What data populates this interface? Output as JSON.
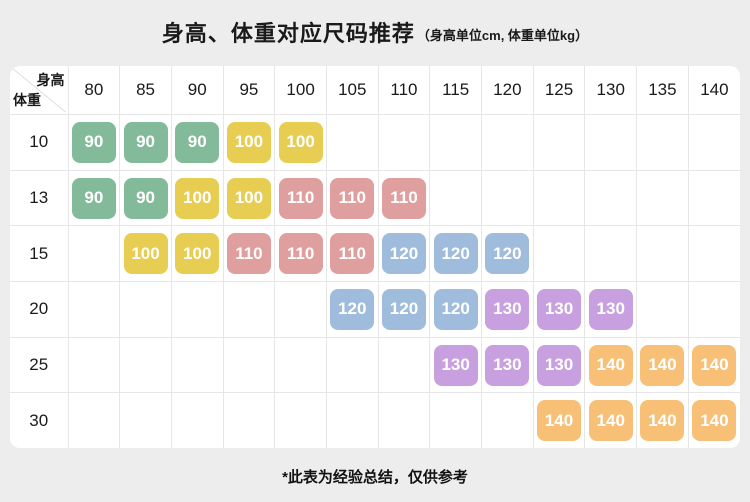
{
  "header": {
    "title": "身高、体重对应尺码推荐",
    "subtitle": "（身高单位cm, 体重单位kg）"
  },
  "footnote": "*此表为经验总结，仅供参考",
  "colors": {
    "page_background": "#ededed",
    "panel_background": "#ffffff",
    "grid_line": "#e6e6e6"
  },
  "chart_data": {
    "type": "table",
    "title": "身高、体重对应尺码推荐",
    "subtitle": "（身高单位cm, 体重单位kg）",
    "x_header": "身高",
    "y_header": "体重",
    "columns": [
      "80",
      "85",
      "90",
      "95",
      "100",
      "105",
      "110",
      "115",
      "120",
      "125",
      "130",
      "135",
      "140"
    ],
    "rows": [
      {
        "weight": "10",
        "sizes": [
          "90",
          "90",
          "90",
          "100",
          "100",
          null,
          null,
          null,
          null,
          null,
          null,
          null,
          null
        ]
      },
      {
        "weight": "13",
        "sizes": [
          "90",
          "90",
          "100",
          "100",
          "110",
          "110",
          "110",
          null,
          null,
          null,
          null,
          null,
          null
        ]
      },
      {
        "weight": "15",
        "sizes": [
          null,
          "100",
          "100",
          "110",
          "110",
          "110",
          "120",
          "120",
          "120",
          null,
          null,
          null,
          null
        ]
      },
      {
        "weight": "20",
        "sizes": [
          null,
          null,
          null,
          null,
          null,
          "120",
          "120",
          "120",
          "130",
          "130",
          "130",
          null,
          null
        ]
      },
      {
        "weight": "25",
        "sizes": [
          null,
          null,
          null,
          null,
          null,
          null,
          null,
          "130",
          "130",
          "130",
          "140",
          "140",
          "140"
        ]
      },
      {
        "weight": "30",
        "sizes": [
          null,
          null,
          null,
          null,
          null,
          null,
          null,
          null,
          null,
          "140",
          "140",
          "140",
          "140"
        ]
      }
    ],
    "size_colors": {
      "90": "#83ba99",
      "100": "#e7ce52",
      "110": "#e09f9f",
      "120": "#a0bcdd",
      "130": "#c8a0e0",
      "140": "#f8c076"
    },
    "footnote": "*此表为经验总结，仅供参考"
  }
}
